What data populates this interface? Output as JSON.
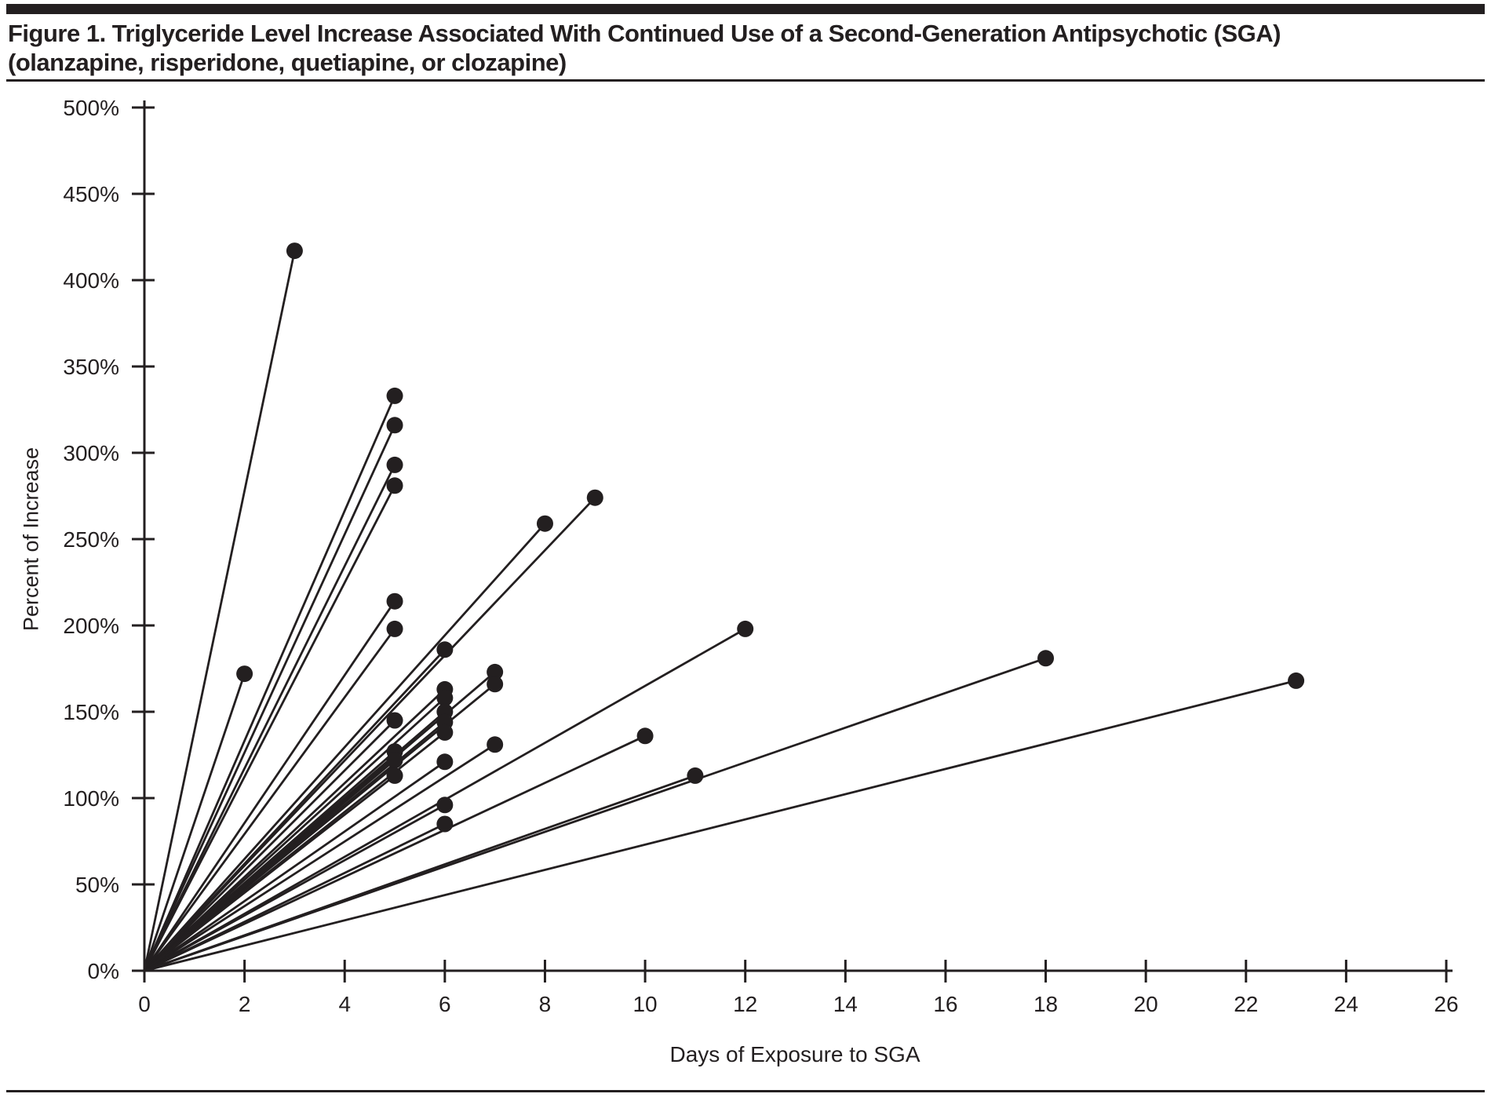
{
  "figure": {
    "title_line1": "Figure 1. Triglyceride Level Increase Associated With Continued Use of a Second-Generation Antipsychotic (SGA)",
    "title_line2": "(olanzapine, risperidone, quetiapine, or clozapine)"
  },
  "chart_data": {
    "type": "scatter",
    "title": "Figure 1. Triglyceride Level Increase Associated With Continued Use of a Second-Generation Antipsychotic (SGA) (olanzapine, risperidone, quetiapine, or clozapine)",
    "xlabel": "Days of Exposure to SGA",
    "ylabel": "Percent of Increase",
    "xlim": [
      0,
      26
    ],
    "ylim": [
      0,
      500
    ],
    "grid": false,
    "legend": "none",
    "marker": "filled-circle",
    "lines_from_origin": true,
    "ink_color": "#231f20",
    "background_color": "#ffffff",
    "x_ticks": [
      {
        "value": 0,
        "label": "0"
      },
      {
        "value": 2,
        "label": "2"
      },
      {
        "value": 4,
        "label": "4"
      },
      {
        "value": 6,
        "label": "6"
      },
      {
        "value": 8,
        "label": "8"
      },
      {
        "value": 10,
        "label": "10"
      },
      {
        "value": 12,
        "label": "12"
      },
      {
        "value": 14,
        "label": "14"
      },
      {
        "value": 16,
        "label": "16"
      },
      {
        "value": 18,
        "label": "18"
      },
      {
        "value": 20,
        "label": "20"
      },
      {
        "value": 22,
        "label": "22"
      },
      {
        "value": 24,
        "label": "24"
      },
      {
        "value": 26,
        "label": "26"
      }
    ],
    "y_ticks": [
      {
        "value": 0,
        "label": "0%"
      },
      {
        "value": 50,
        "label": "50%"
      },
      {
        "value": 100,
        "label": "100%"
      },
      {
        "value": 150,
        "label": "150%"
      },
      {
        "value": 200,
        "label": "200%"
      },
      {
        "value": 250,
        "label": "250%"
      },
      {
        "value": 300,
        "label": "300%"
      },
      {
        "value": 350,
        "label": "350%"
      },
      {
        "value": 400,
        "label": "400%"
      },
      {
        "value": 450,
        "label": "450%"
      },
      {
        "value": 500,
        "label": "500%"
      }
    ],
    "points": [
      {
        "days": 3,
        "pct": 417
      },
      {
        "days": 5,
        "pct": 333
      },
      {
        "days": 5,
        "pct": 316
      },
      {
        "days": 5,
        "pct": 293
      },
      {
        "days": 5,
        "pct": 281
      },
      {
        "days": 9,
        "pct": 274
      },
      {
        "days": 8,
        "pct": 259
      },
      {
        "days": 5,
        "pct": 214
      },
      {
        "days": 12,
        "pct": 198
      },
      {
        "days": 5,
        "pct": 198
      },
      {
        "days": 6,
        "pct": 186
      },
      {
        "days": 18,
        "pct": 181
      },
      {
        "days": 7,
        "pct": 173
      },
      {
        "days": 2,
        "pct": 172
      },
      {
        "days": 23,
        "pct": 168
      },
      {
        "days": 7,
        "pct": 166
      },
      {
        "days": 6,
        "pct": 163
      },
      {
        "days": 6,
        "pct": 158
      },
      {
        "days": 6,
        "pct": 150
      },
      {
        "days": 5,
        "pct": 145
      },
      {
        "days": 6,
        "pct": 144
      },
      {
        "days": 6,
        "pct": 138
      },
      {
        "days": 10,
        "pct": 136
      },
      {
        "days": 7,
        "pct": 131
      },
      {
        "days": 5,
        "pct": 127
      },
      {
        "days": 5,
        "pct": 122
      },
      {
        "days": 6,
        "pct": 121
      },
      {
        "days": 11,
        "pct": 113
      },
      {
        "days": 5,
        "pct": 113
      },
      {
        "days": 6,
        "pct": 96
      },
      {
        "days": 6,
        "pct": 85
      }
    ]
  }
}
